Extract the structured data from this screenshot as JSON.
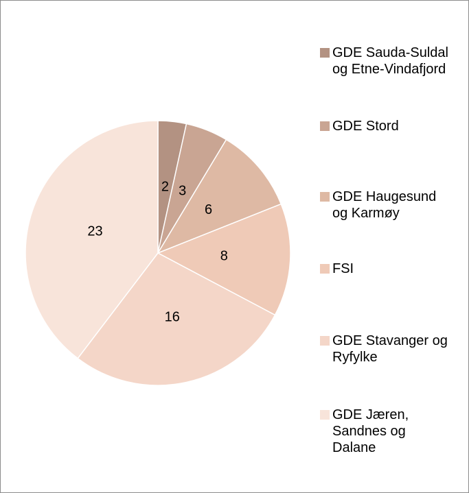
{
  "chart_data": {
    "type": "pie",
    "categories": [
      "GDE Sauda-Suldal og Etne-Vindafjord",
      "GDE Stord",
      "GDE Haugesund og Karmøy",
      "FSI",
      "GDE Stavanger og Ryfylke",
      "GDE Jæren, Sandnes og Dalane"
    ],
    "values": [
      2,
      3,
      6,
      8,
      16,
      23
    ],
    "colors": [
      "#b39282",
      "#c9a593",
      "#deb9a4",
      "#efcab7",
      "#f4d6c8",
      "#f8e4da"
    ],
    "legend": "right"
  }
}
